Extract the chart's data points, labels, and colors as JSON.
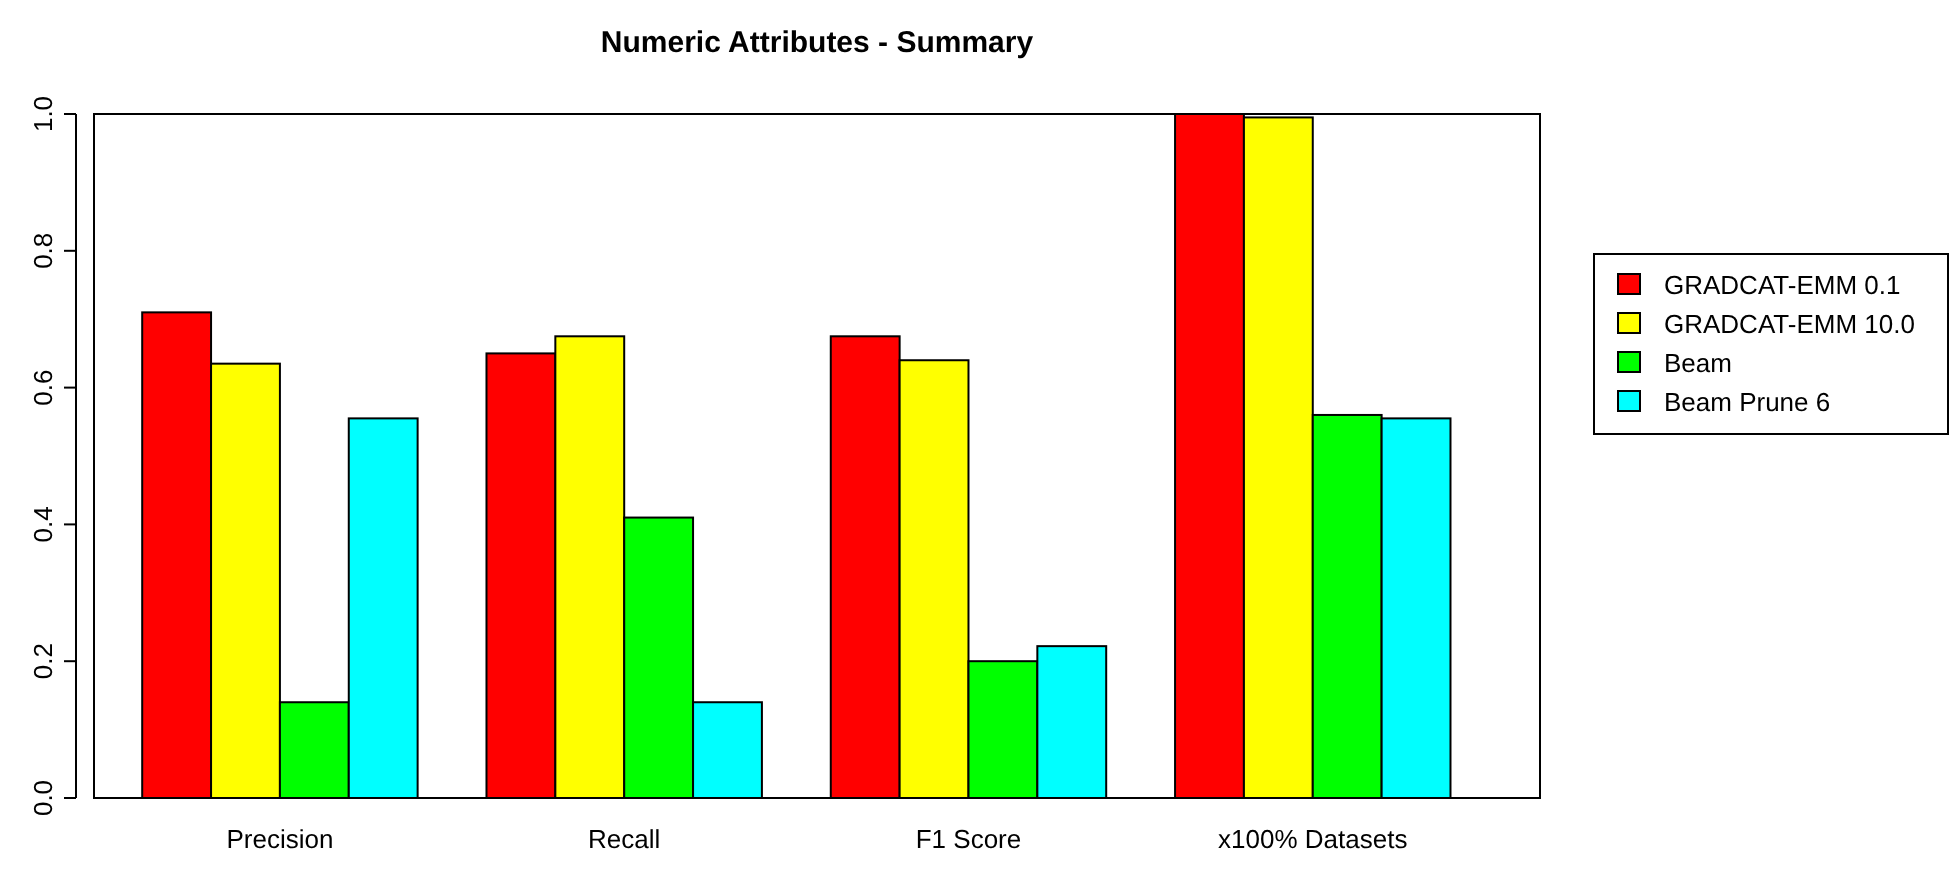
{
  "chart_data": {
    "type": "bar",
    "title": "Numeric Attributes - Summary",
    "categories": [
      "Precision",
      "Recall",
      "F1 Score",
      "x100% Datasets"
    ],
    "series": [
      {
        "name": "GRADCAT-EMM 0.1",
        "color": "#ff0000",
        "values": [
          0.71,
          0.65,
          0.675,
          1.0
        ]
      },
      {
        "name": "GRADCAT-EMM 10.0",
        "color": "#ffff00",
        "values": [
          0.635,
          0.675,
          0.64,
          0.995
        ]
      },
      {
        "name": "Beam",
        "color": "#00ff00",
        "values": [
          0.14,
          0.41,
          0.2,
          0.56
        ]
      },
      {
        "name": "Beam Prune 6",
        "color": "#00ffff",
        "values": [
          0.555,
          0.14,
          0.222,
          0.555
        ]
      }
    ],
    "ylim": [
      0,
      1
    ],
    "yticks": [
      {
        "value": 0,
        "label": "0.0"
      },
      0.2,
      0.4,
      0.6,
      0.8,
      {
        "value": 1,
        "label": "1.0"
      }
    ],
    "grid": false,
    "legend": "right"
  }
}
